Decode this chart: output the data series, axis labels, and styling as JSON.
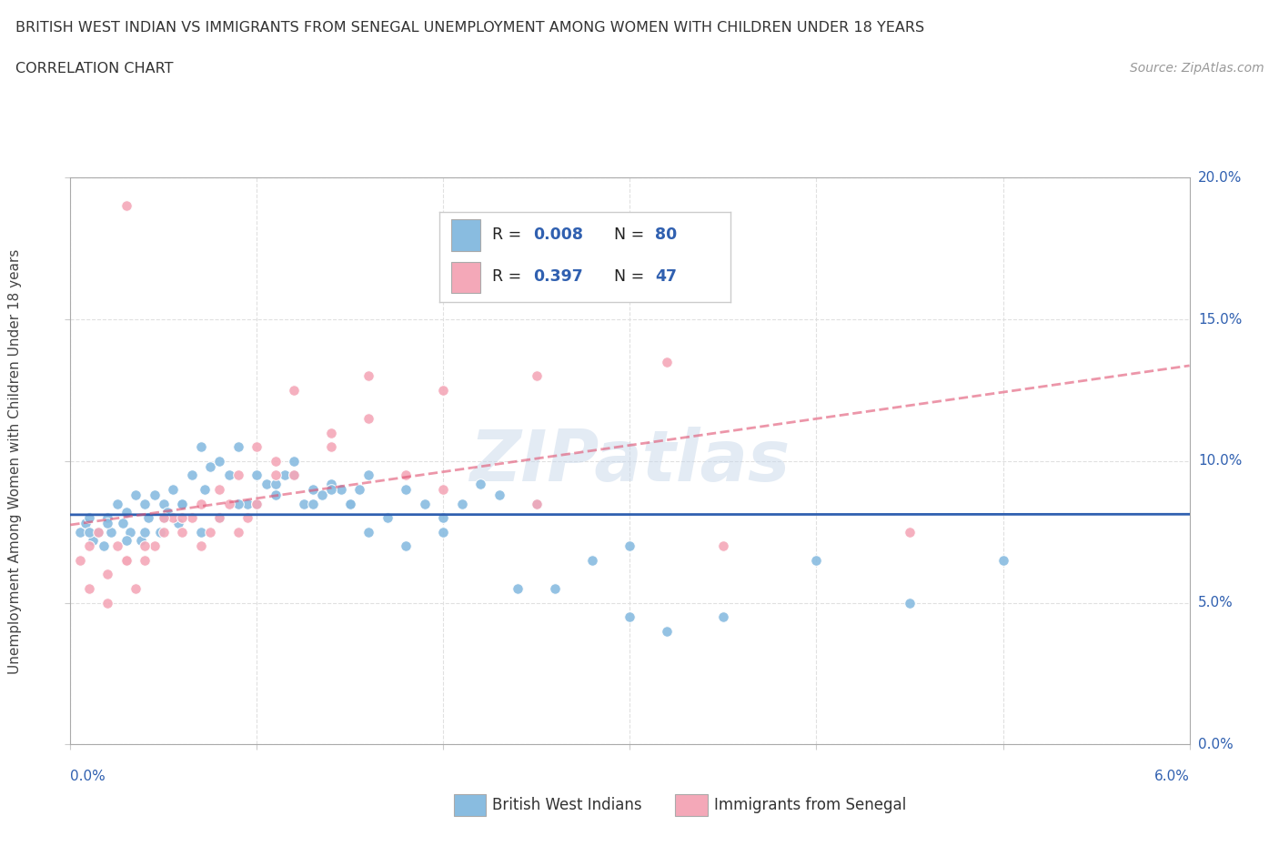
{
  "title_line1": "BRITISH WEST INDIAN VS IMMIGRANTS FROM SENEGAL UNEMPLOYMENT AMONG WOMEN WITH CHILDREN UNDER 18 YEARS",
  "title_line2": "CORRELATION CHART",
  "source": "Source: ZipAtlas.com",
  "ylabel": "Unemployment Among Women with Children Under 18 years",
  "yticks": [
    "0.0%",
    "5.0%",
    "10.0%",
    "15.0%",
    "20.0%"
  ],
  "ytick_vals": [
    0,
    5,
    10,
    15,
    20
  ],
  "xlim": [
    0,
    6
  ],
  "ylim": [
    0,
    20
  ],
  "color_blue": "#89bce0",
  "color_pink": "#f4a8b8",
  "color_blue_dark": "#3060b0",
  "trendline1_color": "#3060b0",
  "trendline2_color": "#e05070",
  "watermark": "ZIPatlas",
  "legend_label1": "British West Indians",
  "legend_label2": "Immigrants from Senegal",
  "bwi_x": [
    0.05,
    0.08,
    0.1,
    0.12,
    0.15,
    0.18,
    0.2,
    0.22,
    0.25,
    0.28,
    0.3,
    0.32,
    0.35,
    0.38,
    0.4,
    0.42,
    0.45,
    0.48,
    0.5,
    0.52,
    0.55,
    0.58,
    0.6,
    0.65,
    0.7,
    0.72,
    0.75,
    0.8,
    0.85,
    0.9,
    0.95,
    1.0,
    1.05,
    1.1,
    1.15,
    1.2,
    1.25,
    1.3,
    1.35,
    1.4,
    1.45,
    1.5,
    1.55,
    1.6,
    1.7,
    1.8,
    1.9,
    2.0,
    2.1,
    2.2,
    2.3,
    2.5,
    2.6,
    2.8,
    3.0,
    3.2,
    3.5,
    4.0,
    4.5,
    5.0,
    0.1,
    0.2,
    0.3,
    0.4,
    0.5,
    0.6,
    0.7,
    0.8,
    0.9,
    1.0,
    1.1,
    1.2,
    1.3,
    1.4,
    1.5,
    1.6,
    1.8,
    2.0,
    2.4,
    3.0
  ],
  "bwi_y": [
    7.5,
    7.8,
    8.0,
    7.2,
    7.5,
    7.0,
    8.0,
    7.5,
    8.5,
    7.8,
    8.2,
    7.5,
    8.8,
    7.2,
    8.5,
    8.0,
    8.8,
    7.5,
    8.5,
    8.2,
    9.0,
    7.8,
    8.5,
    9.5,
    10.5,
    9.0,
    9.8,
    10.0,
    9.5,
    10.5,
    8.5,
    9.5,
    9.2,
    8.8,
    9.5,
    10.0,
    8.5,
    9.0,
    8.8,
    9.2,
    9.0,
    8.5,
    9.0,
    9.5,
    8.0,
    9.0,
    8.5,
    8.0,
    8.5,
    9.2,
    8.8,
    8.5,
    5.5,
    6.5,
    7.0,
    4.0,
    4.5,
    6.5,
    5.0,
    6.5,
    7.5,
    7.8,
    7.2,
    7.5,
    8.0,
    8.5,
    7.5,
    8.0,
    8.5,
    8.5,
    9.2,
    9.5,
    8.5,
    9.0,
    8.5,
    7.5,
    7.0,
    7.5,
    5.5,
    4.5
  ],
  "senegal_x": [
    0.05,
    0.1,
    0.15,
    0.2,
    0.25,
    0.3,
    0.35,
    0.4,
    0.45,
    0.5,
    0.55,
    0.6,
    0.65,
    0.7,
    0.75,
    0.8,
    0.85,
    0.9,
    0.95,
    1.0,
    1.1,
    1.2,
    1.4,
    1.6,
    1.8,
    2.0,
    2.5,
    3.2,
    0.1,
    0.2,
    0.3,
    0.4,
    0.5,
    0.6,
    0.7,
    0.8,
    0.9,
    1.0,
    1.1,
    1.2,
    1.4,
    1.6,
    2.0,
    2.5,
    3.5,
    4.5,
    0.3
  ],
  "senegal_y": [
    6.5,
    7.0,
    7.5,
    6.0,
    7.0,
    6.5,
    5.5,
    6.5,
    7.0,
    7.5,
    8.0,
    7.5,
    8.0,
    7.0,
    7.5,
    8.0,
    8.5,
    7.5,
    8.0,
    8.5,
    9.5,
    12.5,
    10.5,
    11.5,
    9.5,
    12.5,
    13.0,
    13.5,
    5.5,
    5.0,
    6.5,
    7.0,
    8.0,
    8.0,
    8.5,
    9.0,
    9.5,
    10.5,
    10.0,
    9.5,
    11.0,
    13.0,
    9.0,
    8.5,
    7.0,
    7.5,
    19.0
  ]
}
